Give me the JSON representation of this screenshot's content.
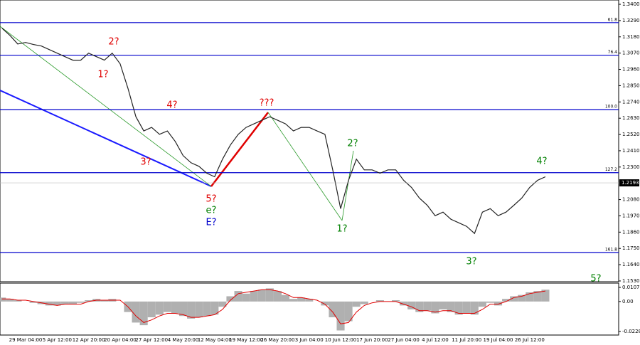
{
  "chart_data": [
    {
      "type": "line",
      "categories": [
        null,
        null,
        null,
        "29 Mar 04:00",
        null,
        null,
        null,
        "5 Apr 12:00",
        null,
        null,
        null,
        "12 Apr 20:00",
        null,
        null,
        null,
        "20 Apr 04:00",
        null,
        null,
        null,
        "27 Apr 12:00",
        null,
        null,
        null,
        "4 May 20:00",
        null,
        null,
        null,
        "12 May 04:00",
        null,
        null,
        null,
        "19 May 12:00",
        null,
        null,
        null,
        "26 May 20:00",
        null,
        null,
        null,
        "3 Jun 04:00",
        null,
        null,
        null,
        "10 Jun 12:00",
        null,
        null,
        null,
        "17 Jun 20:00",
        null,
        null,
        null,
        "27 Jun 04:00",
        null,
        null,
        null,
        "4 Jul 12:00",
        null,
        null,
        null,
        "11 Jul 20:00",
        null,
        null,
        null,
        "19 Jul 04:00",
        null,
        null,
        null,
        "26 Jul 12:00",
        null,
        null
      ],
      "values": [
        1.3238,
        1.319,
        1.3132,
        1.3142,
        1.3128,
        1.3118,
        1.3094,
        1.307,
        1.3046,
        1.3022,
        1.3022,
        1.307,
        1.3046,
        1.3022,
        1.307,
        1.2998,
        1.2831,
        1.264,
        1.2544,
        1.2568,
        1.2521,
        1.2544,
        1.2473,
        1.2377,
        1.2329,
        1.2305,
        1.2258,
        1.2234,
        1.2353,
        1.2449,
        1.2521,
        1.2568,
        1.2592,
        1.2616,
        1.264,
        1.2616,
        1.2592,
        1.2544,
        1.2568,
        1.2568,
        1.2544,
        1.2521,
        1.2281,
        1.2019,
        1.221,
        1.2353,
        1.2281,
        1.2281,
        1.2258,
        1.2281,
        1.2281,
        1.221,
        1.2162,
        1.209,
        1.2042,
        1.1971,
        1.1995,
        1.1947,
        1.1923,
        1.1899,
        1.1851,
        1.1995,
        1.2019,
        1.1971,
        1.1995,
        1.2042,
        1.209,
        1.2162,
        1.221,
        1.2234
      ],
      "color": "#222222",
      "ylim": [
        1.1525,
        1.3429
      ],
      "yticks": [
        {
          "value": 1.34,
          "label": "1.3400"
        },
        {
          "value": 1.329,
          "label": "1.3290"
        },
        {
          "value": 1.318,
          "label": "1.3180"
        },
        {
          "value": 1.307,
          "label": "1.3070"
        },
        {
          "value": 1.296,
          "label": "1.2960"
        },
        {
          "value": 1.285,
          "label": "1.2850"
        },
        {
          "value": 1.274,
          "label": "1.2740"
        },
        {
          "value": 1.263,
          "label": "1.2630"
        },
        {
          "value": 1.252,
          "label": "1.2520"
        },
        {
          "value": 1.241,
          "label": "1.2410"
        },
        {
          "value": 1.23,
          "label": "1.2300"
        },
        {
          "value": 1.208,
          "label": "1.2080"
        },
        {
          "value": 1.197,
          "label": "1.1970"
        },
        {
          "value": 1.186,
          "label": "1.1860"
        },
        {
          "value": 1.175,
          "label": "1.1750"
        },
        {
          "value": 1.164,
          "label": "1.1640"
        },
        {
          "value": 1.153,
          "label": "1.1530"
        }
      ],
      "last_price": 1.2193,
      "level_color": "#0000cc",
      "levels": [
        {
          "value": 1.3276,
          "label": "61.8"
        },
        {
          "value": 1.3056,
          "label": "76.4"
        },
        {
          "value": 1.2688,
          "label": "100.0"
        },
        {
          "value": 1.2262,
          "label": "127.2"
        },
        {
          "value": 1.1722,
          "label": "161.8"
        }
      ],
      "annotations": [
        {
          "text": "2?",
          "color": "#e00000"
        },
        {
          "text": "1?",
          "color": "#e00000"
        },
        {
          "text": "4?",
          "color": "#e00000"
        },
        {
          "text": "3?",
          "color": "#e00000"
        },
        {
          "text": "???",
          "color": "#e00000"
        },
        {
          "text": "5?",
          "color": "#e00000"
        },
        {
          "text": "e?",
          "color": "#008000"
        },
        {
          "text": "E?",
          "color": "#0000cc"
        },
        {
          "text": "2?",
          "color": "#008000"
        },
        {
          "text": "1?",
          "color": "#008000"
        },
        {
          "text": "3?",
          "color": "#008000"
        },
        {
          "text": "4?",
          "color": "#008000"
        },
        {
          "text": "5?",
          "color": "#008000"
        }
      ]
    },
    {
      "type": "bar",
      "values": [
        0.003,
        0.002,
        0.001,
        0.0,
        -0.001,
        -0.002,
        -0.003,
        -0.003,
        -0.002,
        -0.002,
        -0.001,
        0.001,
        0.002,
        0.001,
        0.002,
        0.0,
        -0.008,
        -0.016,
        -0.018,
        -0.012,
        -0.01,
        -0.008,
        -0.009,
        -0.011,
        -0.013,
        -0.012,
        -0.011,
        -0.01,
        -0.004,
        0.004,
        0.008,
        0.006,
        0.008,
        0.009,
        0.01,
        0.008,
        0.005,
        0.002,
        0.003,
        0.002,
        0.0,
        -0.003,
        -0.012,
        -0.022,
        -0.015,
        -0.004,
        -0.002,
        0.0,
        0.001,
        0.0,
        0.001,
        -0.003,
        -0.006,
        -0.008,
        -0.007,
        -0.009,
        -0.006,
        -0.008,
        -0.01,
        -0.009,
        -0.01,
        -0.004,
        -0.001,
        -0.003,
        0.002,
        0.004,
        0.005,
        0.007,
        0.008,
        0.009
      ],
      "color": "#b0b0b0",
      "signal_values": [
        0.002,
        0.002,
        0.001,
        0.001,
        0.0,
        -0.001,
        -0.002,
        -0.003,
        -0.002,
        -0.002,
        -0.002,
        0.0,
        0.001,
        0.001,
        0.001,
        0.001,
        -0.004,
        -0.011,
        -0.016,
        -0.014,
        -0.011,
        -0.009,
        -0.009,
        -0.01,
        -0.012,
        -0.012,
        -0.011,
        -0.01,
        -0.006,
        0.001,
        0.006,
        0.007,
        0.008,
        0.009,
        0.009,
        0.008,
        0.006,
        0.003,
        0.003,
        0.002,
        0.001,
        -0.002,
        -0.008,
        -0.017,
        -0.016,
        -0.008,
        -0.003,
        -0.001,
        0.0,
        0.0,
        0.0,
        -0.002,
        -0.004,
        -0.007,
        -0.007,
        -0.008,
        -0.007,
        -0.007,
        -0.009,
        -0.009,
        -0.009,
        -0.006,
        -0.002,
        -0.002,
        0.0,
        0.003,
        0.004,
        0.006,
        0.007,
        0.008
      ],
      "signal_color": "#e00000",
      "ylim": [
        -0.0255,
        0.014
      ],
      "yticks": [
        0.01075,
        {
          "value": 0,
          "label": "0.00"
        },
        -0.0228
      ]
    }
  ]
}
